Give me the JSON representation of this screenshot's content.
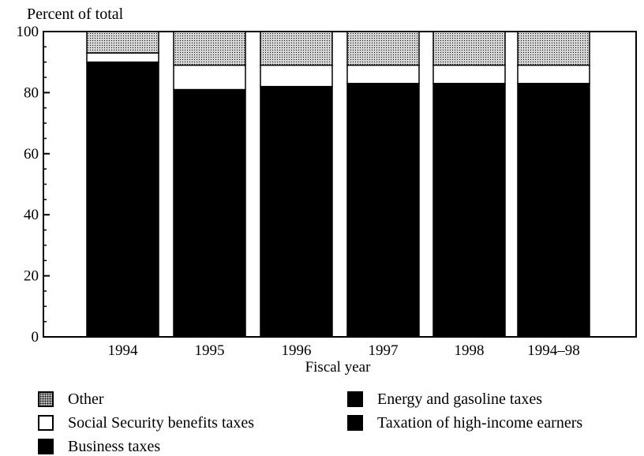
{
  "chart_data": {
    "type": "bar",
    "stacked": true,
    "ylabel": "Percent of total",
    "xlabel": "Fiscal year",
    "ylim": [
      0,
      100
    ],
    "yticks": [
      0,
      20,
      40,
      60,
      80,
      100
    ],
    "categories": [
      "1994",
      "1995",
      "1996",
      "1997",
      "1998",
      "1994–98"
    ],
    "series": [
      {
        "name": "Taxation of high-income earners",
        "values": [
          90,
          81,
          82,
          83,
          83,
          83
        ],
        "color": "#000000"
      },
      {
        "name": "Energy and gasoline taxes",
        "values": [
          0,
          0,
          0,
          0,
          0,
          0
        ],
        "color": "#000000"
      },
      {
        "name": "Business taxes",
        "values": [
          0,
          0,
          0,
          0,
          0,
          0
        ],
        "color": "#000000"
      },
      {
        "name": "Social Security benefits taxes",
        "values": [
          3,
          8,
          7,
          6,
          6,
          6
        ],
        "color": "#ffffff"
      },
      {
        "name": "Other",
        "values": [
          7,
          11,
          11,
          11,
          11,
          11
        ],
        "color": "#d0d0d0"
      }
    ],
    "legend_position": "bottom",
    "grid": false
  },
  "legend": {
    "items": [
      {
        "label": "Other"
      },
      {
        "label": "Social Security benefits taxes"
      },
      {
        "label": "Business taxes"
      },
      {
        "label": "Energy and gasoline taxes"
      },
      {
        "label": "Taxation of high-income earners"
      }
    ]
  }
}
